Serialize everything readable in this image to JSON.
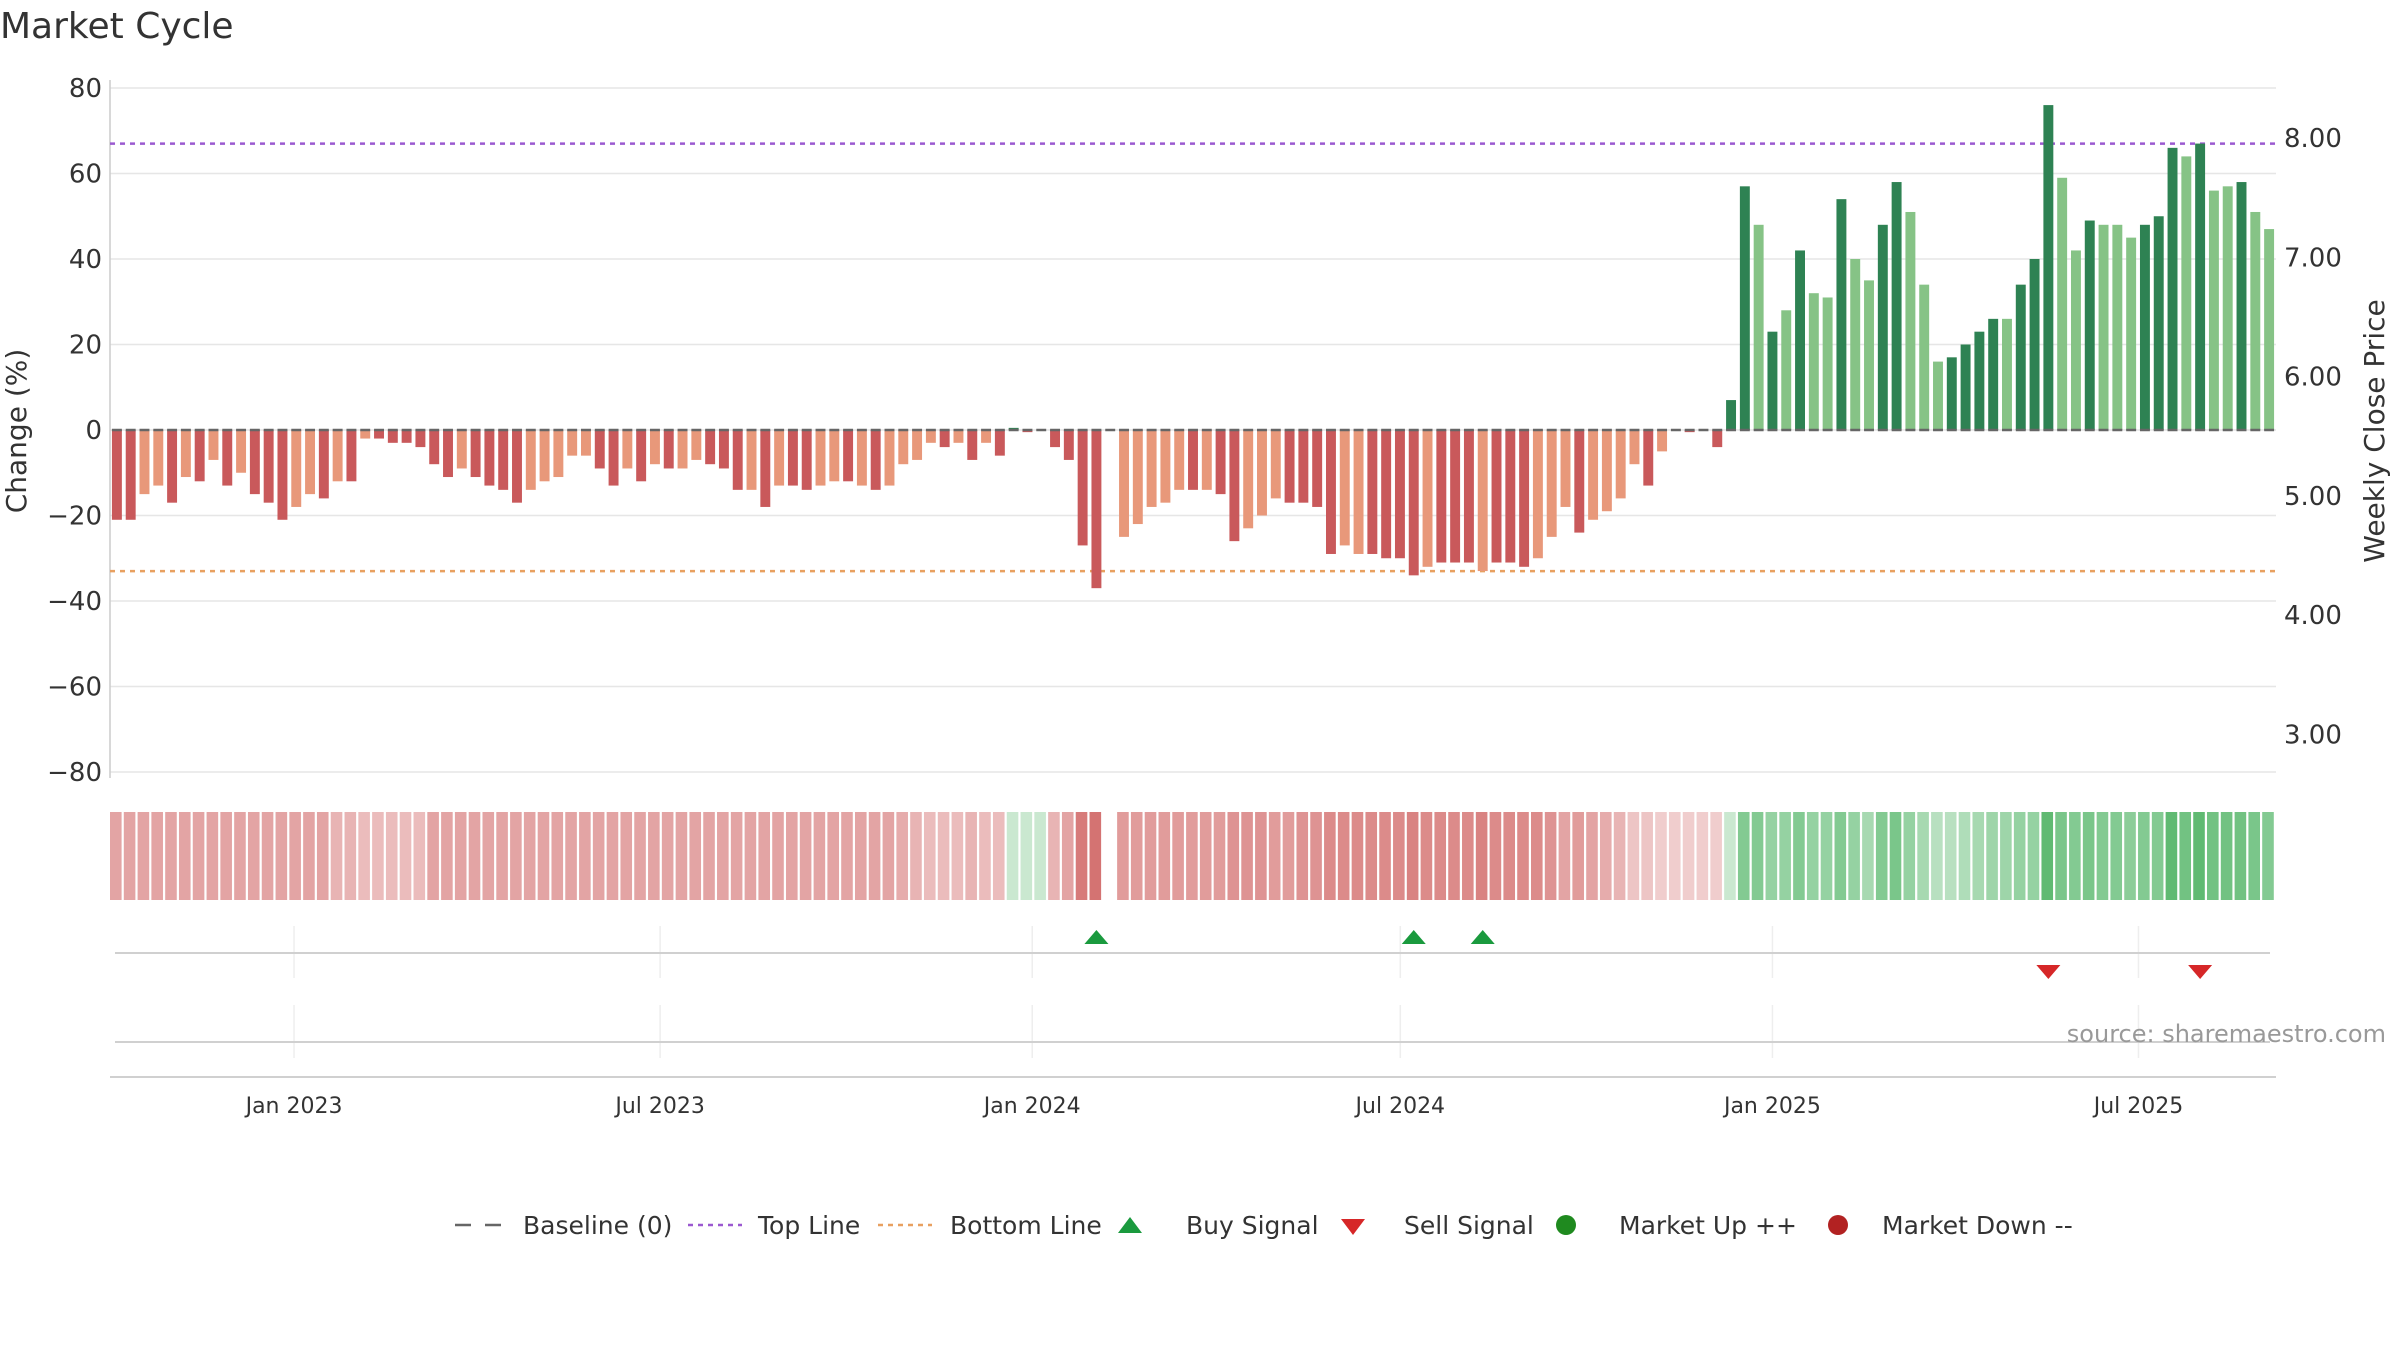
{
  "chart_data": {
    "type": "bar",
    "title": "Market Cycle",
    "ylabel_left": "Change (%)",
    "ylabel_right": "Weekly Close Price",
    "ylim": [
      -80,
      80
    ],
    "y_ticks": [
      80,
      60,
      40,
      20,
      0,
      -20,
      -40,
      -60,
      -80
    ],
    "y_tick_labels": [
      "80",
      "60",
      "40",
      "20",
      "0",
      "−20",
      "−40",
      "−60",
      "−80"
    ],
    "price_ticks": [
      8.0,
      7.0,
      6.0,
      5.0,
      4.0,
      3.0
    ],
    "price_tick_labels": [
      "8.00",
      "7.00",
      "6.00",
      "5.00",
      "4.00",
      "3.00"
    ],
    "x_ticks": [
      {
        "date": "2023-01-01",
        "label": "Jan 2023"
      },
      {
        "date": "2023-07-01",
        "label": "Jul 2023"
      },
      {
        "date": "2024-01-01",
        "label": "Jan 2024"
      },
      {
        "date": "2024-07-01",
        "label": "Jul 2024"
      },
      {
        "date": "2025-01-01",
        "label": "Jan 2025"
      },
      {
        "date": "2025-07-01",
        "label": "Jul 2025"
      }
    ],
    "x_range": [
      "2022-10-02",
      "2025-09-07"
    ],
    "reference_lines": {
      "top_line": 67,
      "bottom_line": -33,
      "baseline": 0
    },
    "colors": {
      "neg_dark": "#c9595b",
      "neg_light": "#e8987a",
      "pos_dark": "#2e8253",
      "pos_light": "#86c386",
      "top_line": "#9b59d0",
      "bottom_line": "#e8a060",
      "baseline": "#666666",
      "buy": "#1a9a3e",
      "sell": "#d62728",
      "market_up": "#1f8a1f",
      "market_down": "#b22222"
    },
    "series": [
      {
        "values": [
          -21,
          -21,
          -15,
          -13,
          -17,
          -11,
          -12,
          -7,
          -13,
          -10,
          -15,
          -17,
          -21,
          -18,
          -15,
          -16,
          -12,
          -12,
          -2,
          -2,
          -3,
          -3,
          -4,
          -8,
          -11,
          -9,
          -11,
          -13,
          -14,
          -17,
          -14,
          -12,
          -11,
          -6,
          -6,
          -9,
          -13,
          -9,
          -12,
          -8,
          -9,
          -9,
          -7,
          -8,
          -9,
          -14,
          -14,
          -18,
          -13,
          -13,
          -14,
          -13,
          -12,
          -12,
          -13,
          -14,
          -13,
          -8,
          -7,
          -3,
          -4,
          -3,
          -7,
          -3,
          -6,
          0.5,
          -0.5,
          0,
          -4,
          -7,
          -27,
          -37,
          0,
          -25,
          -22,
          -18,
          -17,
          -14,
          -14,
          -14,
          -15,
          -26,
          -23,
          -20,
          -16,
          -17,
          -17,
          -18,
          -29,
          -27,
          -29,
          -29,
          -30,
          -30,
          -34,
          -32,
          -31,
          -31,
          -31,
          -33,
          -31,
          -31,
          -32,
          -30,
          -25,
          -18,
          -24,
          -21,
          -19,
          -16,
          -8,
          -13,
          -5,
          0,
          -0.5,
          0,
          -4,
          7,
          57,
          48,
          23,
          28,
          42,
          32,
          31,
          54,
          40,
          35,
          48,
          58,
          51,
          34,
          16,
          17,
          20,
          23,
          26,
          26,
          34,
          40,
          76,
          59,
          42,
          49,
          48,
          48,
          45,
          48,
          50,
          66,
          64,
          67,
          56,
          57,
          58,
          51,
          47
        ]
      }
    ],
    "bar_shading": [
      "dark",
      "dark",
      "light",
      "light",
      "dark",
      "light",
      "dark",
      "light",
      "dark",
      "light",
      "dark",
      "dark",
      "dark",
      "light",
      "light",
      "dark",
      "light",
      "dark",
      "light",
      "dark",
      "dark",
      "dark",
      "dark",
      "dark",
      "dark",
      "light",
      "dark",
      "dark",
      "dark",
      "dark",
      "light",
      "light",
      "light",
      "light",
      "light",
      "dark",
      "dark",
      "light",
      "dark",
      "light",
      "dark",
      "light",
      "light",
      "dark",
      "dark",
      "dark",
      "light",
      "dark",
      "light",
      "dark",
      "dark",
      "light",
      "light",
      "dark",
      "light",
      "dark",
      "light",
      "light",
      "light",
      "light",
      "dark",
      "light",
      "dark",
      "light",
      "dark",
      "dark",
      "dark",
      "dark",
      "dark",
      "dark",
      "dark",
      "dark",
      "dark",
      "light",
      "light",
      "light",
      "light",
      "light",
      "dark",
      "light",
      "dark",
      "dark",
      "light",
      "light",
      "light",
      "dark",
      "dark",
      "dark",
      "dark",
      "light",
      "light",
      "dark",
      "dark",
      "dark",
      "dark",
      "light",
      "dark",
      "dark",
      "dark",
      "light",
      "dark",
      "dark",
      "dark",
      "light",
      "light",
      "light",
      "dark",
      "light",
      "light",
      "light",
      "light",
      "dark",
      "light",
      "dark",
      "dark",
      "dark",
      "dark",
      "dark",
      "dark",
      "light",
      "dark",
      "light",
      "dark",
      "light",
      "light",
      "dark",
      "light",
      "light",
      "dark",
      "dark",
      "light",
      "light",
      "light",
      "dark",
      "dark",
      "dark",
      "dark",
      "light",
      "dark",
      "dark",
      "dark",
      "light",
      "light",
      "dark",
      "light",
      "light",
      "light",
      "dark",
      "dark",
      "dark",
      "light",
      "dark",
      "light",
      "light",
      "dark",
      "light",
      "light"
    ],
    "band_strip": {
      "gap_index": 72,
      "values": [
        0.55,
        0.55,
        0.55,
        0.55,
        0.55,
        0.55,
        0.55,
        0.55,
        0.55,
        0.55,
        0.55,
        0.55,
        0.55,
        0.55,
        0.55,
        0.55,
        0.45,
        0.45,
        0.4,
        0.4,
        0.4,
        0.4,
        0.4,
        0.55,
        0.55,
        0.55,
        0.55,
        0.55,
        0.55,
        0.55,
        0.55,
        0.55,
        0.55,
        0.55,
        0.55,
        0.55,
        0.55,
        0.55,
        0.55,
        0.55,
        0.55,
        0.55,
        0.55,
        0.55,
        0.55,
        0.55,
        0.55,
        0.55,
        0.55,
        0.55,
        0.55,
        0.55,
        0.55,
        0.55,
        0.55,
        0.55,
        0.55,
        0.5,
        0.45,
        0.4,
        0.4,
        0.4,
        0.45,
        0.4,
        0.4,
        -0.3,
        -0.3,
        -0.3,
        0.45,
        0.55,
        0.8,
        0.85,
        0,
        0.6,
        0.6,
        0.6,
        0.6,
        0.6,
        0.6,
        0.6,
        0.6,
        0.65,
        0.65,
        0.65,
        0.6,
        0.6,
        0.65,
        0.65,
        0.7,
        0.7,
        0.7,
        0.7,
        0.7,
        0.7,
        0.75,
        0.7,
        0.7,
        0.7,
        0.7,
        0.75,
        0.7,
        0.7,
        0.7,
        0.7,
        0.65,
        0.55,
        0.6,
        0.55,
        0.5,
        0.45,
        0.35,
        0.35,
        0.3,
        0.3,
        0.3,
        0.3,
        0.3,
        -0.3,
        -0.7,
        -0.7,
        -0.6,
        -0.6,
        -0.7,
        -0.6,
        -0.6,
        -0.7,
        -0.6,
        -0.5,
        -0.7,
        -0.75,
        -0.6,
        -0.5,
        -0.4,
        -0.4,
        -0.45,
        -0.5,
        -0.55,
        -0.55,
        -0.6,
        -0.6,
        -0.9,
        -0.75,
        -0.7,
        -0.75,
        -0.7,
        -0.7,
        -0.65,
        -0.7,
        -0.7,
        -0.9,
        -0.8,
        -0.9,
        -0.8,
        -0.8,
        -0.8,
        -0.75,
        -0.7
      ]
    },
    "buy_signals": [
      71,
      94,
      99
    ],
    "sell_signals": [
      140,
      151
    ],
    "legend": [
      {
        "label": "Baseline (0)",
        "marker": "dash"
      },
      {
        "label": "Top Line",
        "marker": "dotted-purple"
      },
      {
        "label": "Bottom Line",
        "marker": "dotted-orange"
      },
      {
        "label": "Buy Signal",
        "marker": "triangle-up"
      },
      {
        "label": "Sell Signal",
        "marker": "triangle-down"
      },
      {
        "label": "Market Up ++",
        "marker": "circle-green"
      },
      {
        "label": "Market Down --",
        "marker": "circle-red"
      }
    ],
    "legend_position": "bottom-center",
    "grid": true,
    "source": "source: sharemaestro.com"
  }
}
